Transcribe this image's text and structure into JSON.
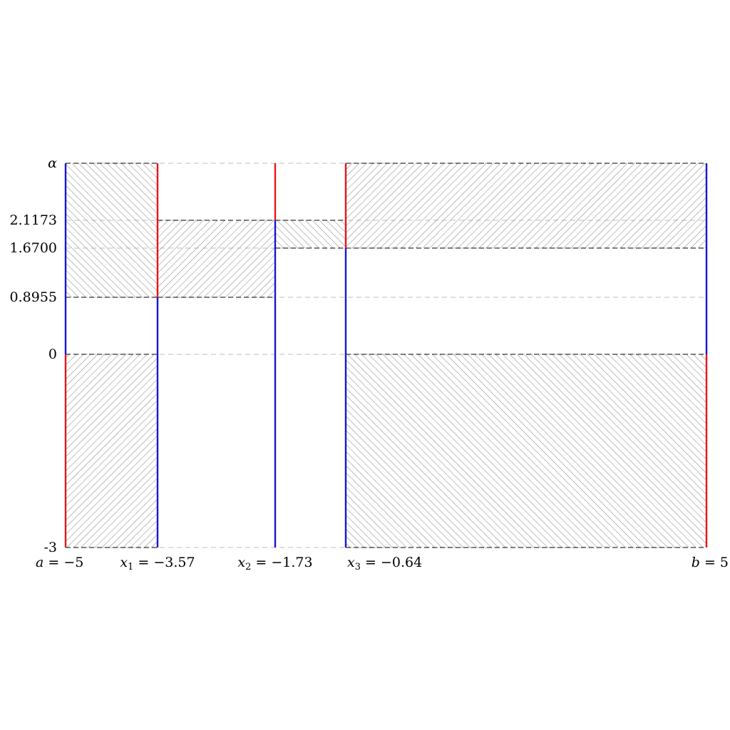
{
  "chart_data": {
    "type": "region-diagram",
    "title": "",
    "xlabel": "",
    "ylabel": "",
    "x_domain": [
      -5,
      5
    ],
    "y_domain": [
      -3,
      "alpha"
    ],
    "y_ticks": [
      {
        "key": "alpha",
        "label": "α"
      },
      {
        "key": "y2",
        "label": "2.1173"
      },
      {
        "key": "y3",
        "label": "1.6700"
      },
      {
        "key": "y4",
        "label": "0.8955"
      },
      {
        "key": "y0",
        "label": "0"
      },
      {
        "key": "ym3",
        "label": "-3"
      }
    ],
    "x_ticks": [
      {
        "key": "a",
        "var": "a",
        "sub": "",
        "value": "−5"
      },
      {
        "key": "x1",
        "var": "x",
        "sub": "1",
        "value": "−3.57"
      },
      {
        "key": "x2",
        "var": "x",
        "sub": "2",
        "value": "−1.73"
      },
      {
        "key": "x3",
        "var": "x",
        "sub": "3",
        "value": "−0.64"
      },
      {
        "key": "b",
        "var": "b",
        "sub": "",
        "value": "5"
      }
    ],
    "grid": "horizontal dashed at tick levels",
    "colors": {
      "red": "#e8141b",
      "blue": "#1616d6",
      "hatch": "#8c8c8c",
      "grid": "#bdbdbd",
      "dash": "#000000"
    },
    "hatched_regions": [
      {
        "x": [
          "a",
          "x1"
        ],
        "y": [
          "y4",
          "alpha"
        ],
        "direction": "nw-se"
      },
      {
        "x": [
          "a",
          "x1"
        ],
        "y": [
          "ym3",
          "y0"
        ],
        "direction": "sw-ne"
      },
      {
        "x": [
          "x1",
          "x2"
        ],
        "y": [
          "y4",
          "y2"
        ],
        "direction": "sw-ne"
      },
      {
        "x": [
          "x2",
          "x3"
        ],
        "y": [
          "y3",
          "y2"
        ],
        "direction": "nw-se"
      },
      {
        "x": [
          "x3",
          "b"
        ],
        "y": [
          "y3",
          "alpha"
        ],
        "direction": "sw-ne"
      },
      {
        "x": [
          "x3",
          "b"
        ],
        "y": [
          "ym3",
          "y0"
        ],
        "direction": "nw-se"
      }
    ],
    "vertical_segments": [
      {
        "x": "a",
        "y": [
          "y0",
          "alpha"
        ],
        "color": "blue"
      },
      {
        "x": "a",
        "y": [
          "ym3",
          "y0"
        ],
        "color": "red"
      },
      {
        "x": "x1",
        "y": [
          "y4",
          "alpha"
        ],
        "color": "red"
      },
      {
        "x": "x1",
        "y": [
          "ym3",
          "y4"
        ],
        "color": "blue"
      },
      {
        "x": "x2",
        "y": [
          "y2",
          "alpha"
        ],
        "color": "red"
      },
      {
        "x": "x2",
        "y": [
          "ym3",
          "y2"
        ],
        "color": "blue"
      },
      {
        "x": "x3",
        "y": [
          "y3",
          "alpha"
        ],
        "color": "red"
      },
      {
        "x": "x3",
        "y": [
          "ym3",
          "y3"
        ],
        "color": "blue"
      },
      {
        "x": "b",
        "y": [
          "y0",
          "alpha"
        ],
        "color": "blue"
      },
      {
        "x": "b",
        "y": [
          "ym3",
          "y0"
        ],
        "color": "red"
      }
    ]
  }
}
